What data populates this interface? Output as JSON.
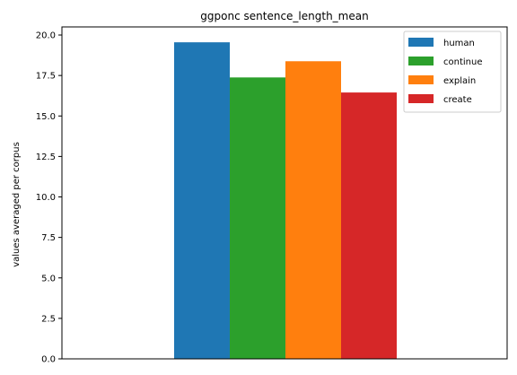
{
  "chart_data": {
    "type": "bar",
    "title": "ggponc sentence_length_mean",
    "xlabel": "",
    "ylabel": "values averaged per corpus",
    "ylim": [
      0,
      20.5
    ],
    "yticks": [
      "0.0",
      "2.5",
      "5.0",
      "7.5",
      "10.0",
      "12.5",
      "15.0",
      "17.5",
      "20.0"
    ],
    "grid": false,
    "legend_position": "top-right",
    "series": [
      {
        "name": "human",
        "value": 19.55,
        "color": "#1f77b4"
      },
      {
        "name": "continue",
        "value": 17.38,
        "color": "#2ca02c"
      },
      {
        "name": "explain",
        "value": 18.38,
        "color": "#ff7f0e"
      },
      {
        "name": "create",
        "value": 16.45,
        "color": "#d62728"
      }
    ]
  }
}
